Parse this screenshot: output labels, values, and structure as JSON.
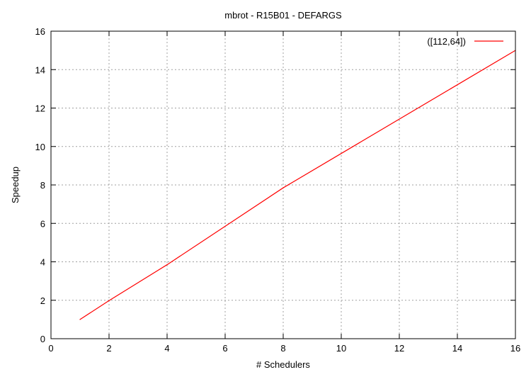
{
  "chart_data": {
    "type": "line",
    "title": "mbrot - R15B01 - DEFARGS",
    "xlabel": "# Schedulers",
    "ylabel": "Speedup",
    "xlim": [
      0,
      16
    ],
    "ylim": [
      0,
      16
    ],
    "xticks": [
      0,
      2,
      4,
      6,
      8,
      10,
      12,
      14,
      16
    ],
    "yticks": [
      0,
      2,
      4,
      6,
      8,
      10,
      12,
      14,
      16
    ],
    "grid": true,
    "legend_position": "top-right",
    "series": [
      {
        "name": "([112,64])",
        "color": "#ff0000",
        "x": [
          1,
          2,
          4,
          8,
          16
        ],
        "y": [
          1.0,
          1.98,
          3.85,
          7.85,
          15.0
        ]
      }
    ]
  }
}
